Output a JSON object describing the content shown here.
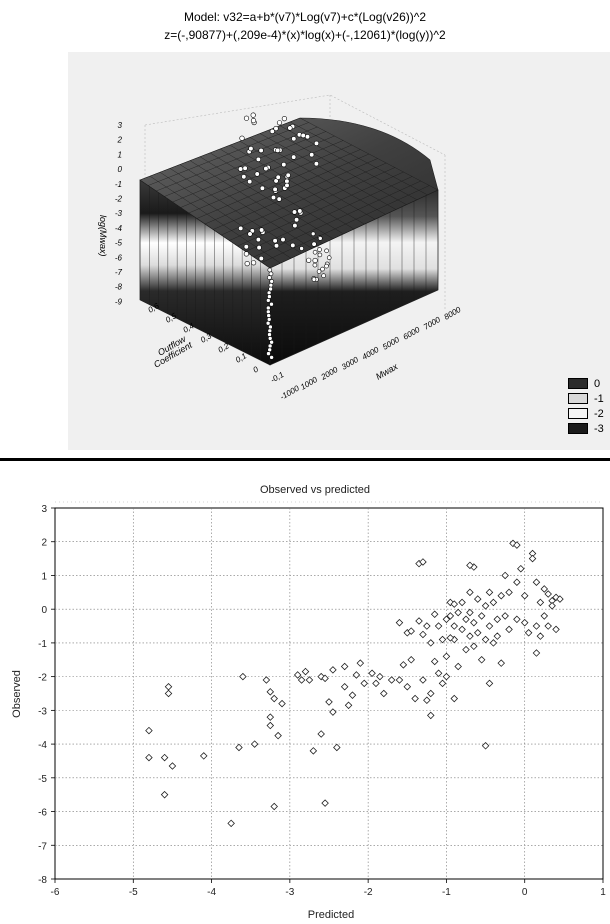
{
  "chart_data": [
    {
      "type": "surface",
      "title": "Model: v32=a+b*(v7)*Log(v7)+c*(Log(v26))^2",
      "subtitle": "z=(-,90877)+(,209e-4)*(x)*log(x)+(-,12061)*(log(y))^2",
      "xlabel": "Mwax",
      "ylabel": "Outflow Coefficient",
      "zlabel": "log(Mwax)",
      "x_ticks": [
        "-1000",
        "1000",
        "2000",
        "3000",
        "4000",
        "5000",
        "6000",
        "7000",
        "8000"
      ],
      "y_ticks": [
        "-0,1",
        "0",
        "0,1",
        "0,2",
        "0,3",
        "0,4",
        "0,5",
        "0,6"
      ],
      "z_ticks": [
        "3",
        "2",
        "1",
        "0",
        "-1",
        "-2",
        "-3",
        "-4",
        "-5",
        "-6",
        "-7",
        "-8",
        "-9"
      ],
      "legend": {
        "position": "bottom-right",
        "entries": [
          {
            "label": "0",
            "color": "#2b2b2b"
          },
          {
            "label": "-1",
            "color": "#d9d9d9"
          },
          {
            "label": "-2",
            "color": "#f5f5f5"
          },
          {
            "label": "-3",
            "color": "#1a1a1a"
          }
        ]
      }
    },
    {
      "type": "scatter",
      "title": "Observed vs predicted",
      "xlabel": "Predicted",
      "ylabel": "Observed",
      "xlim": [
        -6,
        1
      ],
      "ylim": [
        -8,
        3
      ],
      "x_ticks": [
        "-6",
        "-5",
        "-4",
        "-3",
        "-2",
        "-1",
        "0",
        "1"
      ],
      "y_ticks": [
        "3",
        "2",
        "1",
        "0",
        "-1",
        "-2",
        "-3",
        "-4",
        "-5",
        "-6",
        "-7",
        "-8"
      ],
      "grid": true,
      "series": [
        {
          "marker": "diamond",
          "points": [
            [
              -4.8,
              -3.6
            ],
            [
              -4.8,
              -4.4
            ],
            [
              -4.55,
              -2.3
            ],
            [
              -4.55,
              -2.5
            ],
            [
              -4.6,
              -4.4
            ],
            [
              -4.5,
              -4.65
            ],
            [
              -4.6,
              -5.5
            ],
            [
              -4.1,
              -4.35
            ],
            [
              -3.6,
              -2.0
            ],
            [
              -3.65,
              -4.1
            ],
            [
              -3.45,
              -4.0
            ],
            [
              -3.75,
              -6.35
            ],
            [
              -3.3,
              -2.1
            ],
            [
              -3.25,
              -2.45
            ],
            [
              -3.2,
              -2.65
            ],
            [
              -3.25,
              -3.2
            ],
            [
              -3.25,
              -3.45
            ],
            [
              -3.15,
              -3.75
            ],
            [
              -3.2,
              -5.85
            ],
            [
              -3.1,
              -2.8
            ],
            [
              -2.9,
              -1.95
            ],
            [
              -2.85,
              -2.1
            ],
            [
              -2.8,
              -1.85
            ],
            [
              -2.75,
              -2.1
            ],
            [
              -2.7,
              -4.2
            ],
            [
              -2.6,
              -2.0
            ],
            [
              -2.55,
              -2.05
            ],
            [
              -2.6,
              -3.7
            ],
            [
              -2.5,
              -2.75
            ],
            [
              -2.45,
              -3.05
            ],
            [
              -2.45,
              -1.8
            ],
            [
              -2.4,
              -4.1
            ],
            [
              -2.55,
              -5.75
            ],
            [
              -2.3,
              -1.7
            ],
            [
              -2.3,
              -2.3
            ],
            [
              -2.25,
              -2.85
            ],
            [
              -2.2,
              -2.55
            ],
            [
              -2.15,
              -1.95
            ],
            [
              -2.1,
              -1.6
            ],
            [
              -2.05,
              -2.2
            ],
            [
              -1.95,
              -1.9
            ],
            [
              -1.9,
              -2.2
            ],
            [
              -1.85,
              -2.0
            ],
            [
              -1.8,
              -2.5
            ],
            [
              -1.7,
              -2.1
            ],
            [
              -1.6,
              -2.1
            ],
            [
              -1.55,
              -1.65
            ],
            [
              -1.5,
              -2.3
            ],
            [
              -1.45,
              -1.5
            ],
            [
              -1.4,
              -2.65
            ],
            [
              -1.3,
              -2.1
            ],
            [
              -1.25,
              -2.7
            ],
            [
              -1.2,
              -2.5
            ],
            [
              -1.2,
              -3.15
            ],
            [
              -1.15,
              -1.55
            ],
            [
              -1.1,
              -1.9
            ],
            [
              -1.05,
              -2.2
            ],
            [
              -1.0,
              -1.4
            ],
            [
              -1.0,
              -2.0
            ],
            [
              -1.6,
              -0.4
            ],
            [
              -1.5,
              -0.7
            ],
            [
              -1.35,
              -0.35
            ],
            [
              -1.3,
              -0.75
            ],
            [
              -1.25,
              -0.5
            ],
            [
              -1.2,
              -1.0
            ],
            [
              -1.15,
              -0.15
            ],
            [
              -1.1,
              -0.5
            ],
            [
              -1.05,
              -0.9
            ],
            [
              -1.35,
              1.35
            ],
            [
              -1.3,
              1.4
            ],
            [
              -0.95,
              -0.2
            ],
            [
              -0.95,
              0.2
            ],
            [
              -0.9,
              -0.5
            ],
            [
              -0.9,
              -0.9
            ],
            [
              -0.85,
              -1.7
            ],
            [
              -0.85,
              -0.1
            ],
            [
              -0.8,
              -0.6
            ],
            [
              -0.8,
              0.2
            ],
            [
              -0.75,
              -1.2
            ],
            [
              -0.75,
              -0.3
            ],
            [
              -0.7,
              -0.8
            ],
            [
              -0.7,
              -0.1
            ],
            [
              -0.7,
              0.5
            ],
            [
              -0.65,
              -0.4
            ],
            [
              -0.65,
              -1.1
            ],
            [
              -0.6,
              0.3
            ],
            [
              -0.6,
              -0.7
            ],
            [
              -0.55,
              -1.5
            ],
            [
              -0.55,
              -0.2
            ],
            [
              -0.5,
              0.1
            ],
            [
              -0.5,
              -0.9
            ],
            [
              -0.5,
              -4.05
            ],
            [
              -0.45,
              -0.5
            ],
            [
              -0.45,
              0.5
            ],
            [
              -0.4,
              -1.0
            ],
            [
              -0.4,
              0.2
            ],
            [
              -0.35,
              -0.3
            ],
            [
              -0.35,
              -0.8
            ],
            [
              -0.3,
              0.4
            ],
            [
              -0.3,
              -1.6
            ],
            [
              -0.25,
              -0.2
            ],
            [
              -0.25,
              1.0
            ],
            [
              -0.2,
              0.5
            ],
            [
              -0.2,
              -0.6
            ],
            [
              -0.15,
              1.95
            ],
            [
              -0.1,
              1.9
            ],
            [
              -0.1,
              0.8
            ],
            [
              -0.1,
              -0.3
            ],
            [
              -0.05,
              1.2
            ],
            [
              0.0,
              -0.4
            ],
            [
              0.0,
              0.4
            ],
            [
              0.05,
              -0.7
            ],
            [
              0.1,
              1.65
            ],
            [
              0.1,
              1.5
            ],
            [
              0.15,
              0.8
            ],
            [
              0.15,
              -0.5
            ],
            [
              0.2,
              0.2
            ],
            [
              0.2,
              -0.8
            ],
            [
              0.25,
              0.6
            ],
            [
              0.25,
              -0.2
            ],
            [
              0.3,
              0.45
            ],
            [
              0.3,
              -0.5
            ],
            [
              0.35,
              0.25
            ],
            [
              0.35,
              0.1
            ],
            [
              0.4,
              0.35
            ],
            [
              0.4,
              -0.6
            ],
            [
              0.45,
              0.3
            ],
            [
              0.15,
              -1.3
            ],
            [
              -0.65,
              1.25
            ],
            [
              -0.7,
              1.3
            ],
            [
              -0.9,
              0.15
            ],
            [
              -0.95,
              -0.85
            ],
            [
              -1.45,
              -0.65
            ],
            [
              -1.0,
              -0.3
            ],
            [
              -0.45,
              -2.2
            ],
            [
              -0.9,
              -2.65
            ]
          ]
        }
      ]
    }
  ]
}
